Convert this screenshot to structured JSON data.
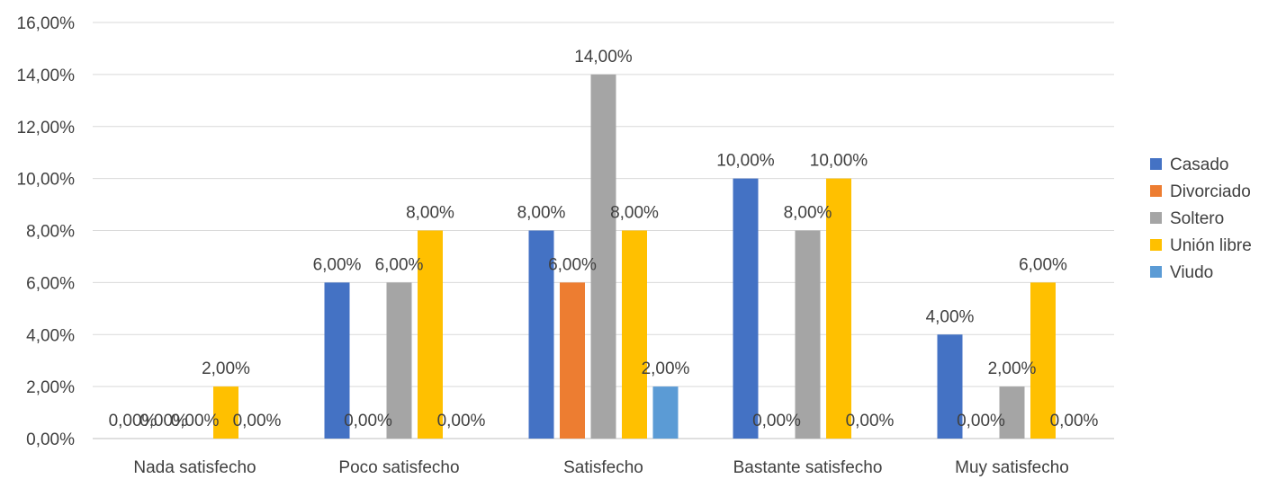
{
  "chart_data": {
    "type": "bar",
    "categories": [
      "Nada satisfecho",
      "Poco satisfecho",
      "Satisfecho",
      "Bastante satisfecho",
      "Muy satisfecho"
    ],
    "series": [
      {
        "name": "Casado",
        "color": "#4472C4",
        "values": [
          0,
          6,
          8,
          10,
          4
        ],
        "labels": [
          "0,00%",
          "6,00%",
          "8,00%",
          "10,00%",
          "4,00%"
        ]
      },
      {
        "name": "Divorciado",
        "color": "#ED7D31",
        "values": [
          0,
          0,
          6,
          0,
          0
        ],
        "labels": [
          "0,00%",
          "0,00%",
          "6,00%",
          "0,00%",
          "0,00%"
        ]
      },
      {
        "name": "Soltero",
        "color": "#A5A5A5",
        "values": [
          0,
          6,
          14,
          8,
          2
        ],
        "labels": [
          "0,00%",
          "6,00%",
          "14,00%",
          "8,00%",
          "2,00%"
        ]
      },
      {
        "name": "Unión libre",
        "color": "#FFC000",
        "values": [
          2,
          8,
          8,
          10,
          6
        ],
        "labels": [
          "2,00%",
          "8,00%",
          "8,00%",
          "10,00%",
          "6,00%"
        ]
      },
      {
        "name": "Viudo",
        "color": "#5B9BD5",
        "values": [
          0,
          0,
          2,
          0,
          0
        ],
        "labels": [
          "0,00%",
          "0,00%",
          "2,00%",
          "0,00%",
          "0,00%"
        ]
      }
    ],
    "yticks": [
      "0,00%",
      "2,00%",
      "4,00%",
      "6,00%",
      "8,00%",
      "10,00%",
      "12,00%",
      "14,00%",
      "16,00%"
    ],
    "ylim": [
      0,
      16
    ],
    "grid": true,
    "legend": "right",
    "title": "",
    "xlabel": "",
    "ylabel": ""
  }
}
